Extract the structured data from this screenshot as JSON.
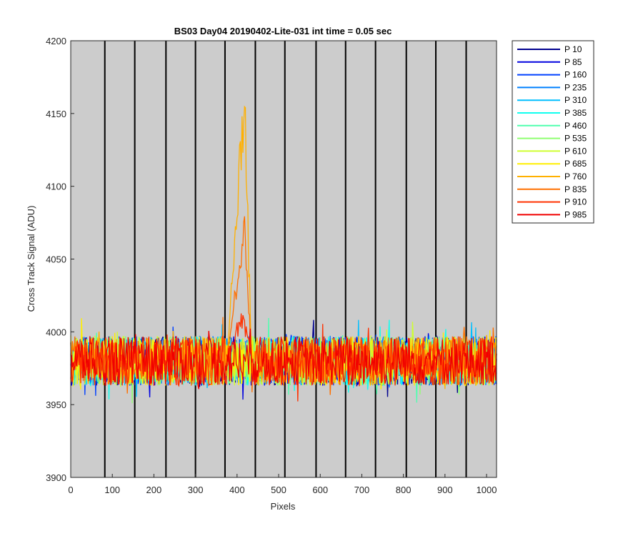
{
  "chart_data": {
    "type": "line",
    "title": "BS03 Day04 20190402-Lite-031 int time = 0.05 sec",
    "xlabel": "Pixels",
    "ylabel": "Cross Track Signal (ADU)",
    "xlim": [
      0,
      1024
    ],
    "ylim": [
      3900,
      4200
    ],
    "xticks": [
      0,
      100,
      200,
      300,
      400,
      500,
      600,
      700,
      800,
      900,
      1000
    ],
    "yticks": [
      3900,
      3950,
      4000,
      4050,
      4100,
      4150,
      4200
    ],
    "background": "#cccccc",
    "grid": false,
    "vertical_lines": [
      82,
      154,
      229,
      300,
      371,
      444,
      515,
      590,
      661,
      733,
      807,
      878,
      951
    ],
    "legend_position": "outside-top-right",
    "baseline": {
      "mean": 3980,
      "noise_range": [
        3948,
        4015
      ]
    },
    "series": [
      {
        "name": "P 10",
        "color": "#00008f",
        "peak": null
      },
      {
        "name": "P 85",
        "color": "#0000df",
        "peak": null
      },
      {
        "name": "P 160",
        "color": "#0040ff",
        "peak": null
      },
      {
        "name": "P 235",
        "color": "#0080ff",
        "peak": null
      },
      {
        "name": "P 310",
        "color": "#00bfff",
        "peak": null
      },
      {
        "name": "P 385",
        "color": "#10ffef",
        "peak": null
      },
      {
        "name": "P 460",
        "color": "#50ffaf",
        "peak": null
      },
      {
        "name": "P 535",
        "color": "#8fff70",
        "peak": null
      },
      {
        "name": "P 610",
        "color": "#cfff30",
        "peak": null
      },
      {
        "name": "P 685",
        "color": "#ffef00",
        "peak": null
      },
      {
        "name": "P 760",
        "color": "#ffb000",
        "peak": {
          "x_range": [
            375,
            435
          ],
          "center": 418,
          "max": 4185
        }
      },
      {
        "name": "P 835",
        "color": "#ff7000",
        "peak": {
          "x_range": [
            375,
            435
          ],
          "center": 418,
          "max": 4080
        }
      },
      {
        "name": "P 910",
        "color": "#ff3000",
        "peak": {
          "x_range": [
            375,
            435
          ],
          "center": 415,
          "max": 4015
        }
      },
      {
        "name": "P 985",
        "color": "#f00000",
        "peak": null
      }
    ]
  }
}
